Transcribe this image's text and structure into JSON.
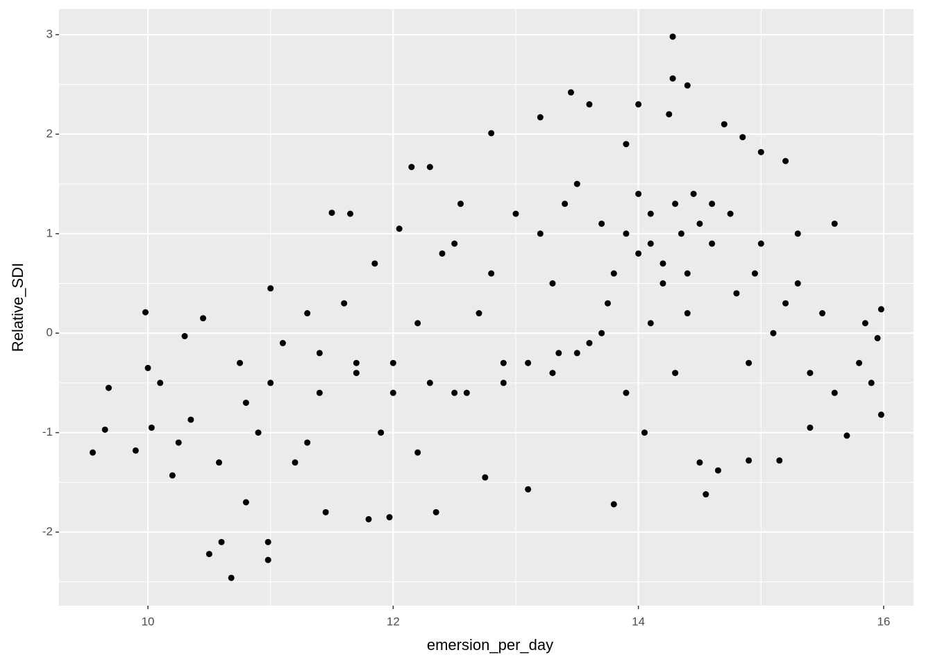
{
  "chart_data": {
    "type": "scatter",
    "x_label": "emersion_per_day",
    "y_label": "Relative_SDI",
    "xlim": [
      9.275,
      16.244
    ],
    "ylim": [
      -2.739,
      3.258
    ],
    "xticks": [
      10,
      12,
      14,
      16
    ],
    "yticks": [
      -2,
      -1,
      0,
      1,
      2,
      3
    ],
    "grid": true,
    "color": "#000000",
    "x": [
      9.55,
      9.65,
      9.68,
      9.9,
      9.98,
      10.0,
      10.03,
      10.1,
      10.2,
      10.25,
      10.3,
      10.35,
      10.45,
      10.5,
      10.58,
      10.6,
      10.68,
      10.98,
      10.98,
      10.75,
      10.8,
      10.9,
      11.0,
      11.1,
      11.2,
      11.3,
      11.4,
      11.45,
      11.5,
      11.65,
      11.6,
      11.7,
      11.8,
      11.85,
      11.97,
      12.0,
      12.05,
      12.15,
      12.3,
      12.2,
      12.35,
      12.4,
      12.5,
      12.55,
      12.7,
      12.75,
      12.8,
      12.9,
      13.0,
      13.1,
      13.2,
      13.3,
      13.35,
      13.45,
      13.5,
      13.6,
      13.6,
      13.7,
      13.75,
      13.8,
      13.9,
      14.0,
      14.0,
      14.05,
      14.1,
      14.2,
      14.25,
      14.28,
      14.28,
      14.35,
      14.4,
      14.4,
      14.45,
      14.5,
      14.55,
      14.6,
      14.65,
      14.7,
      14.75,
      14.85,
      14.9,
      14.95,
      15.0,
      15.1,
      15.15,
      15.2,
      15.3,
      15.4,
      15.5,
      15.6,
      15.7,
      15.8,
      15.85,
      15.9,
      15.98,
      15.98,
      15.95,
      13.9,
      14.1,
      14.3,
      14.5,
      14.2,
      13.8,
      14.4,
      14.6,
      14.0,
      13.7,
      13.5,
      13.3,
      13.1,
      12.9,
      12.6,
      12.3,
      12.0,
      11.7,
      11.4,
      11.0,
      10.8,
      14.8,
      15.0,
      15.2,
      15.4,
      15.6,
      14.3,
      13.9,
      12.8,
      12.5,
      13.2,
      13.4,
      12.2,
      11.9,
      11.3,
      15.3,
      14.9,
      14.1
    ],
    "values": [
      -1.2,
      -0.97,
      -0.55,
      -1.18,
      0.21,
      -0.35,
      -0.95,
      -0.5,
      -1.43,
      -1.1,
      -0.03,
      -0.87,
      0.15,
      -2.22,
      -1.3,
      -2.1,
      -2.46,
      -2.1,
      -2.28,
      -0.3,
      -1.7,
      -1.0,
      0.45,
      -0.1,
      -1.3,
      0.2,
      -0.6,
      -1.8,
      1.21,
      1.2,
      0.3,
      -0.4,
      -1.87,
      0.7,
      -1.85,
      -0.3,
      1.05,
      1.67,
      1.67,
      0.1,
      -1.8,
      0.8,
      -0.6,
      1.3,
      0.2,
      -1.45,
      2.01,
      -0.3,
      1.2,
      -1.57,
      2.17,
      0.5,
      -0.2,
      2.42,
      1.5,
      -0.1,
      2.3,
      1.1,
      0.3,
      -1.72,
      1.9,
      2.3,
      0.8,
      -1.0,
      1.2,
      0.5,
      2.2,
      2.98,
      2.56,
      1.0,
      2.49,
      0.2,
      1.4,
      -1.3,
      -1.62,
      0.9,
      -1.38,
      2.1,
      1.2,
      1.97,
      -1.28,
      0.6,
      1.82,
      0.0,
      -1.28,
      1.73,
      0.5,
      -0.95,
      0.2,
      1.1,
      -1.03,
      -0.3,
      0.1,
      -0.5,
      0.24,
      -0.82,
      -0.05,
      1.0,
      0.9,
      1.3,
      1.1,
      0.7,
      0.6,
      0.6,
      1.3,
      1.4,
      0.0,
      -0.2,
      -0.4,
      -0.3,
      -0.5,
      -0.6,
      -0.5,
      -0.6,
      -0.3,
      -0.2,
      -0.5,
      -0.7,
      0.4,
      0.9,
      0.3,
      -0.4,
      -0.6,
      -0.4,
      -0.6,
      0.6,
      0.9,
      1.0,
      1.3,
      -1.2,
      -1.0,
      -1.1,
      1.0,
      -0.3,
      0.1
    ]
  }
}
